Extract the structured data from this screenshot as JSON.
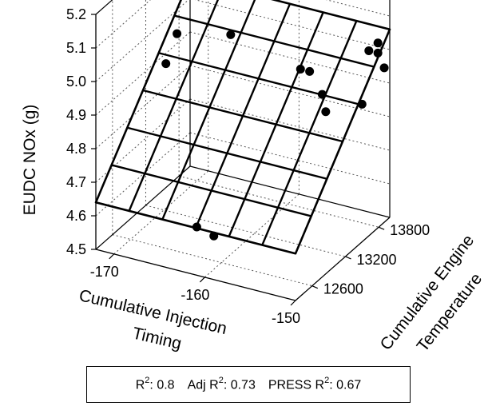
{
  "chart_data": {
    "type": "scatter",
    "subtype": "3d-scatter-with-fitted-plane",
    "title": "",
    "xlabel_lines": [
      "Cumulative Injection",
      "Timing"
    ],
    "ylabel_lines": [
      "Cumulative Engine",
      "Temperature"
    ],
    "zlabel": "EUDC NOx (g)",
    "x_ticks": [
      -170,
      -160,
      -150
    ],
    "y_ticks": [
      12600,
      13200,
      13800
    ],
    "z_ticks": [
      4.5,
      4.6,
      4.7,
      4.8,
      4.9,
      5.0,
      5.1,
      5.2
    ],
    "xlim": [
      -172,
      -150
    ],
    "ylim": [
      12300,
      14000
    ],
    "zlim": [
      4.5,
      5.2
    ],
    "grid": true,
    "points": [
      {
        "x": -171,
        "y": 13400,
        "z": 4.9
      },
      {
        "x": -171,
        "y": 13600,
        "z": 4.96
      },
      {
        "x": -166,
        "y": 13750,
        "z": 4.97
      },
      {
        "x": -161,
        "y": 12320,
        "z": 4.64
      },
      {
        "x": -159,
        "y": 12300,
        "z": 4.63
      },
      {
        "x": -158,
        "y": 13700,
        "z": 4.93
      },
      {
        "x": -157,
        "y": 13700,
        "z": 4.93
      },
      {
        "x": -155,
        "y": 13600,
        "z": 4.89
      },
      {
        "x": -154,
        "y": 13500,
        "z": 4.86
      },
      {
        "x": -152,
        "y": 13950,
        "z": 4.99
      },
      {
        "x": -151,
        "y": 13950,
        "z": 5.02
      },
      {
        "x": -151,
        "y": 13950,
        "z": 4.99
      },
      {
        "x": -150,
        "y": 13500,
        "z": 4.91
      },
      {
        "x": -150,
        "y": 13900,
        "z": 4.96
      }
    ],
    "surface": {
      "corners": [
        {
          "x": -172,
          "y": 12300,
          "z": 4.64
        },
        {
          "x": -150,
          "y": 12300,
          "z": 4.64
        },
        {
          "x": -150,
          "y": 14000,
          "z": 5.06
        },
        {
          "x": -172,
          "y": 14000,
          "z": 5.06
        }
      ],
      "grid_divisions": 6
    },
    "stats": {
      "r2_label": "R",
      "r2_value": ": 0.8",
      "adj_label": "Adj R",
      "adj_value": ": 0.73",
      "press_label": "PRESS R",
      "press_value": ": 0.67",
      "sup": "2"
    }
  }
}
